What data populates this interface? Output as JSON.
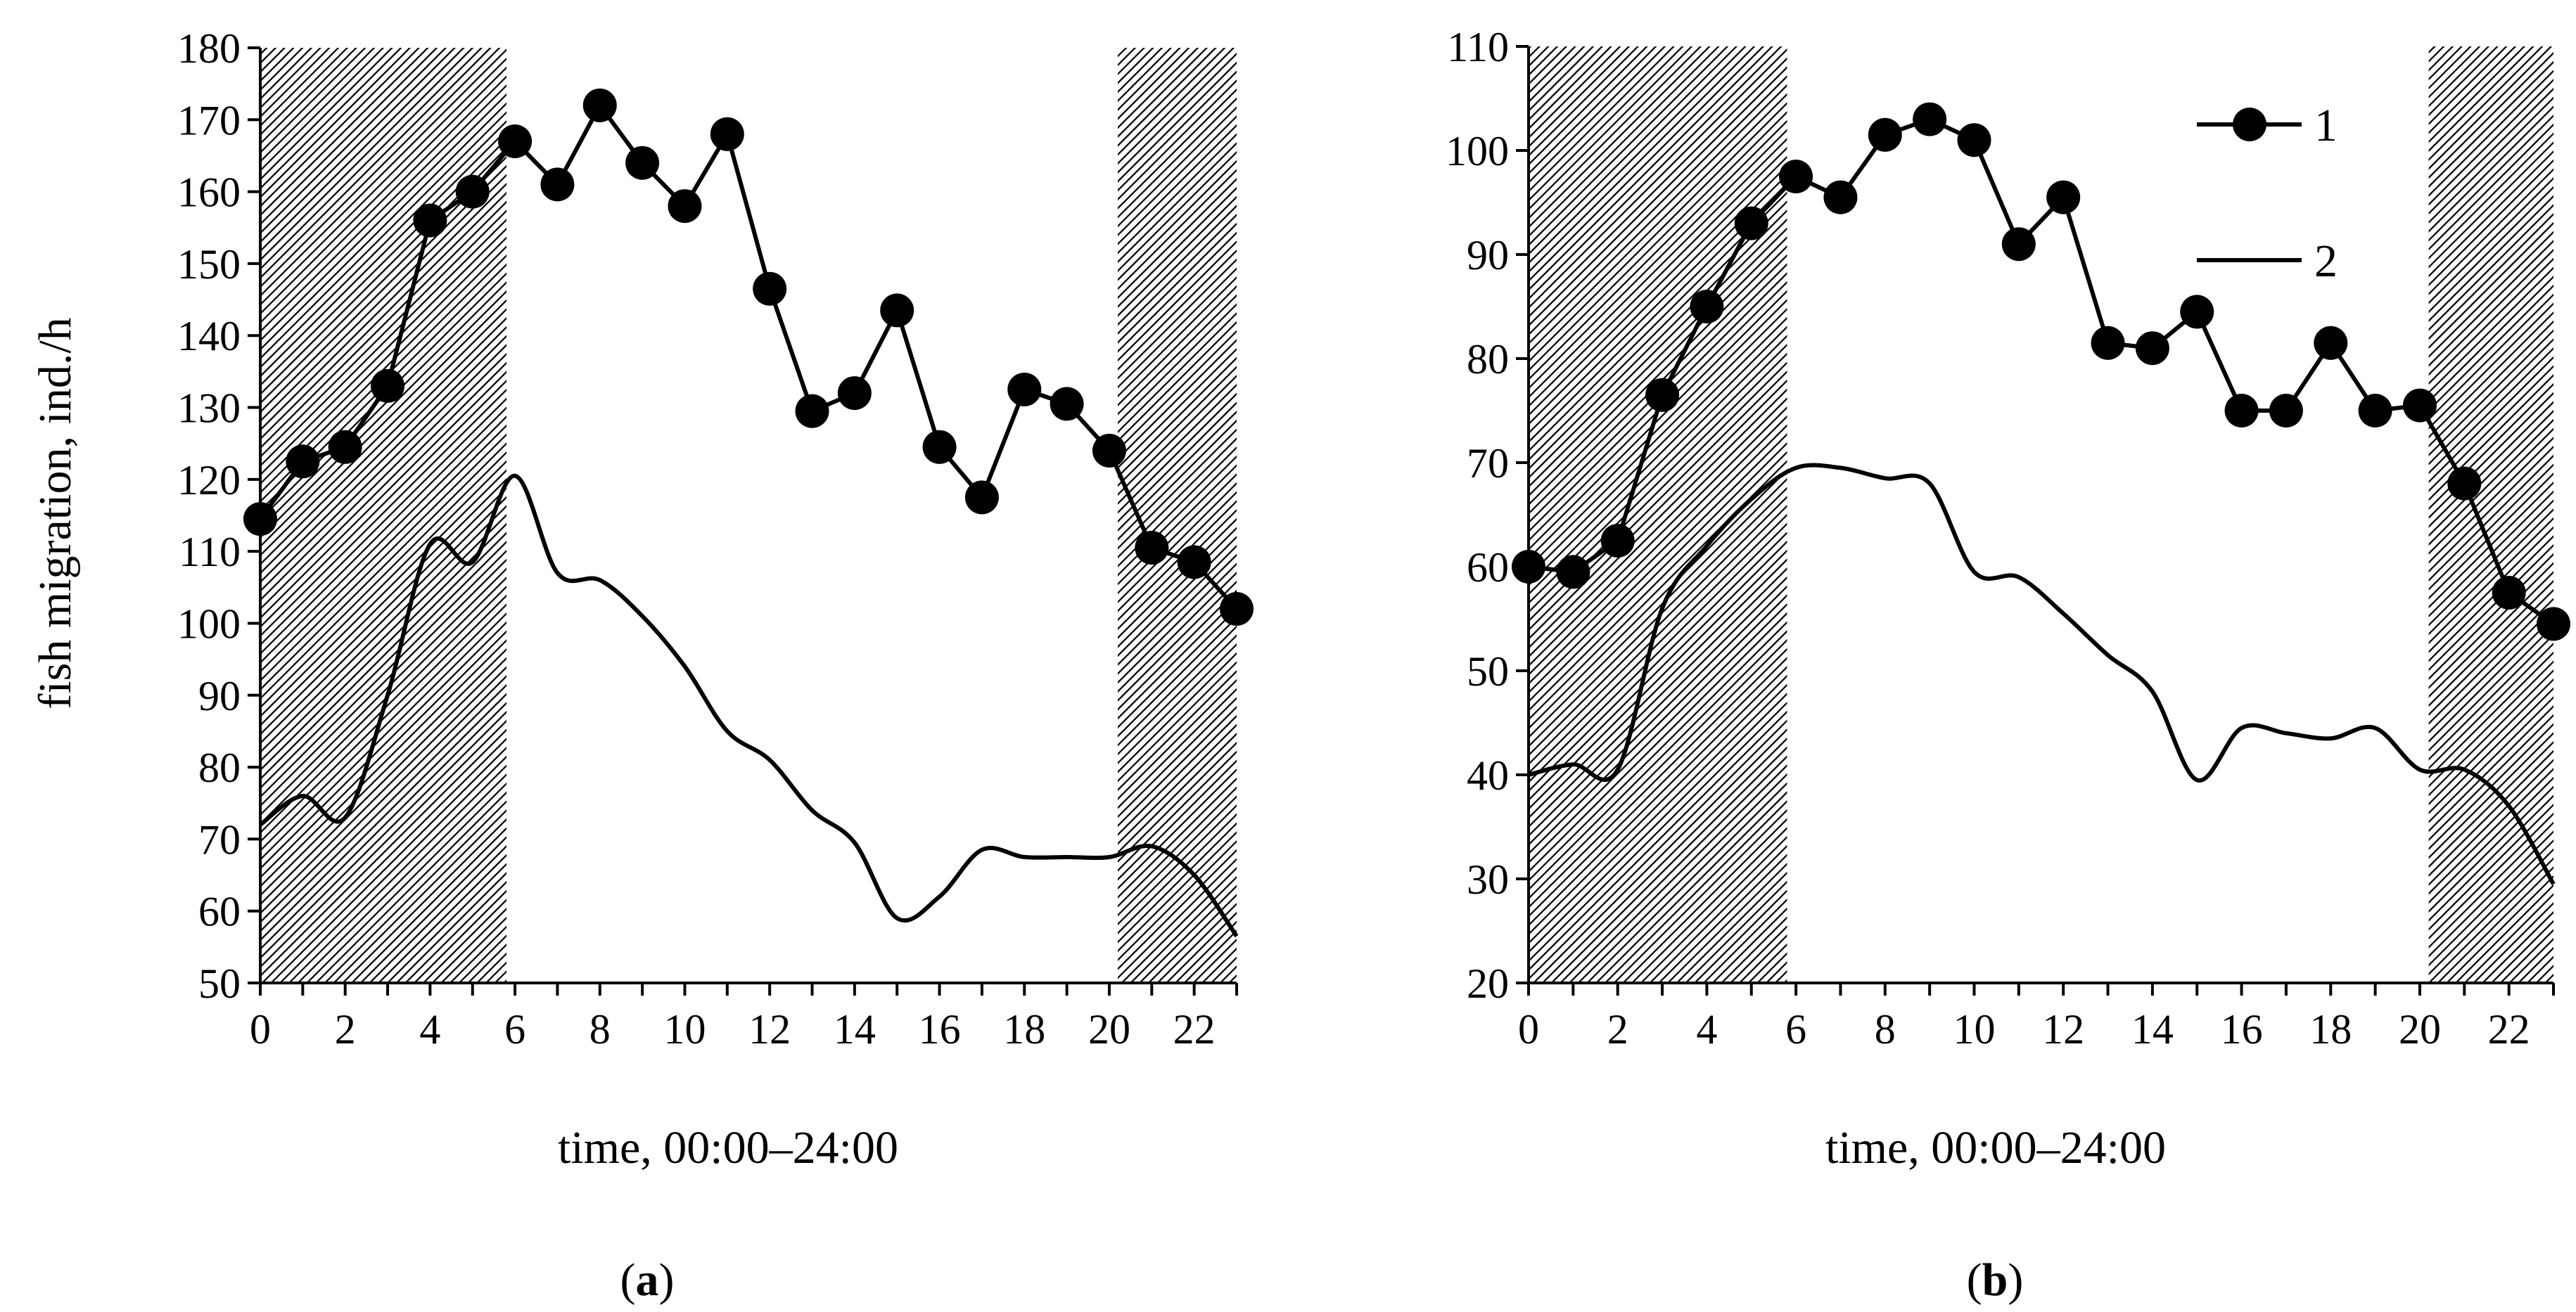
{
  "charts": [
    {
      "id": "a",
      "panel_label": {
        "open": "(",
        "letter": "a",
        "close": ")"
      },
      "ylabel": "fish migration, ind./h",
      "xlabel": "time, 00:00–24:00",
      "show_legend": false
    },
    {
      "id": "b",
      "panel_label": {
        "open": "(",
        "letter": "b",
        "close": ")"
      },
      "ylabel": "",
      "xlabel": "time, 00:00–24:00",
      "show_legend": true
    }
  ],
  "legend": {
    "series1_label": "1",
    "series2_label": "2"
  },
  "chart_data": [
    {
      "type": "line",
      "title": "(a)",
      "xlabel": "time, 00:00–24:00",
      "ylabel": "fish migration, ind./h",
      "xlim": [
        0,
        23
      ],
      "ylim": [
        50,
        180
      ],
      "xticks": [
        0,
        2,
        4,
        6,
        8,
        10,
        12,
        14,
        16,
        18,
        20,
        22
      ],
      "yticks": [
        50,
        60,
        70,
        80,
        90,
        100,
        110,
        120,
        130,
        140,
        150,
        160,
        170,
        180
      ],
      "shaded_regions": [
        [
          0,
          5.8
        ],
        [
          20.2,
          23
        ]
      ],
      "x": [
        0,
        1,
        2,
        3,
        4,
        5,
        6,
        7,
        8,
        9,
        10,
        11,
        12,
        13,
        14,
        15,
        16,
        17,
        18,
        19,
        20,
        21,
        22,
        23
      ],
      "series": [
        {
          "name": "1",
          "marker": "circle",
          "values": [
            114.5,
            122.5,
            124.5,
            133,
            156,
            160,
            167,
            161,
            172,
            164,
            158,
            168,
            146.5,
            129.5,
            132,
            143.5,
            124.5,
            117.5,
            132.5,
            130.5,
            124,
            110.5,
            108.5,
            102
          ]
        },
        {
          "name": "2",
          "marker": "none",
          "values": [
            72,
            76,
            73,
            90,
            111,
            108.5,
            120.5,
            107,
            106,
            101,
            94,
            85,
            81,
            74,
            69.5,
            59,
            62,
            68.5,
            67.5,
            67.5,
            67.5,
            69,
            65,
            56.5
          ]
        }
      ]
    },
    {
      "type": "line",
      "title": "(b)",
      "xlabel": "time, 00:00–24:00",
      "ylabel": "",
      "xlim": [
        0,
        23
      ],
      "ylim": [
        20,
        110
      ],
      "xticks": [
        0,
        2,
        4,
        6,
        8,
        10,
        12,
        14,
        16,
        18,
        20,
        22
      ],
      "yticks": [
        20,
        30,
        40,
        50,
        60,
        70,
        80,
        90,
        100,
        110
      ],
      "shaded_regions": [
        [
          0,
          5.8
        ],
        [
          20.2,
          23
        ]
      ],
      "legend_position": "top-right",
      "x": [
        0,
        1,
        2,
        3,
        4,
        5,
        6,
        7,
        8,
        9,
        10,
        11,
        12,
        13,
        14,
        15,
        16,
        17,
        18,
        19,
        20,
        21,
        22,
        23
      ],
      "series": [
        {
          "name": "1",
          "marker": "circle",
          "values": [
            60,
            59.5,
            62.5,
            76.5,
            85,
            93,
            97.5,
            95.5,
            101.5,
            103,
            101,
            91,
            95.5,
            81.5,
            81,
            84.5,
            75,
            75,
            81.5,
            75,
            75.5,
            68,
            57.5,
            54.5
          ]
        },
        {
          "name": "2",
          "marker": "none",
          "values": [
            40,
            41,
            40.5,
            56,
            62,
            66.5,
            69.5,
            69.5,
            68.5,
            68,
            59.5,
            59,
            55.5,
            51.5,
            48,
            39.5,
            44.5,
            44,
            43.5,
            44.5,
            40.5,
            40.5,
            37,
            29.5
          ]
        }
      ]
    }
  ]
}
